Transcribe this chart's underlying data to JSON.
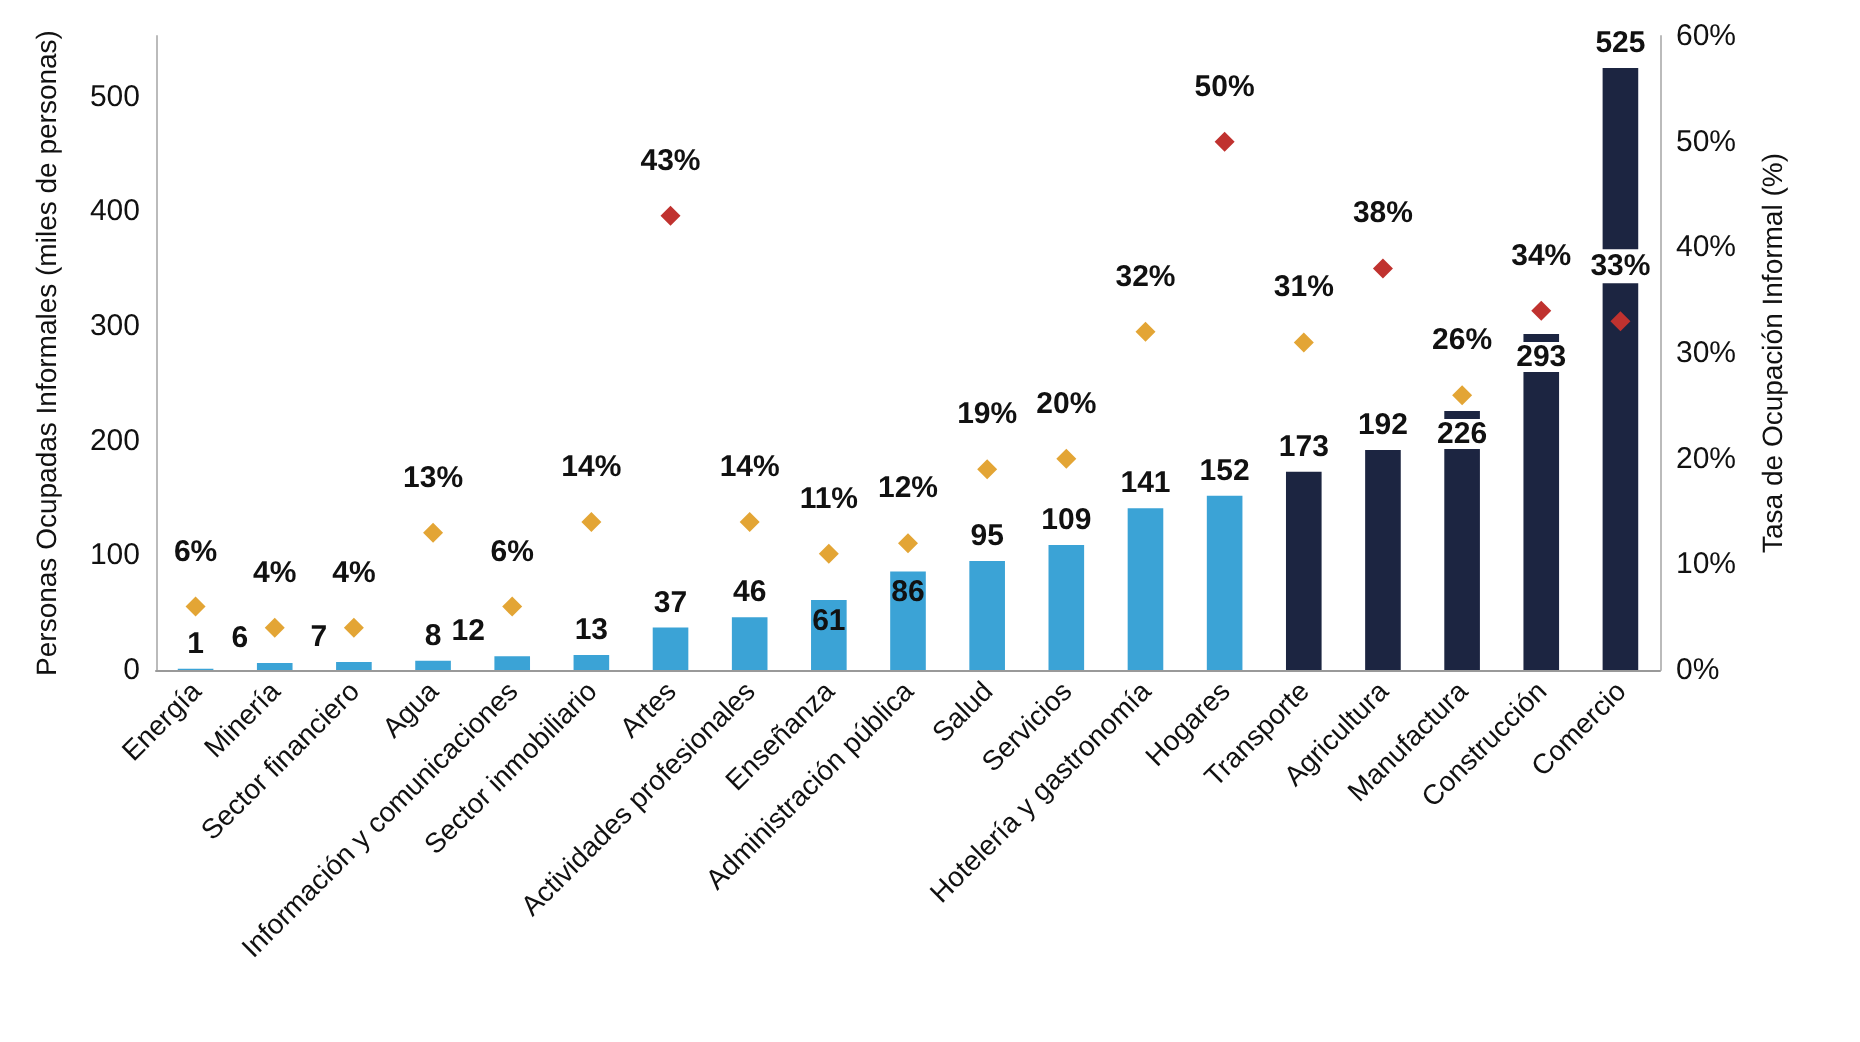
{
  "chart_data": {
    "type": "bar",
    "categories": [
      "Energía",
      "Minería",
      "Sector financiero",
      "Agua",
      "Información y comunicaciones",
      "Sector inmobiliario",
      "Artes",
      "Actividades profesionales",
      "Enseñanza",
      "Administración pública",
      "Salud",
      "Servicios",
      "Hotelería y gastronomía",
      "Hogares",
      "Transporte",
      "Agricultura",
      "Manufactura",
      "Construcción",
      "Comercio"
    ],
    "ylabel": "Personas Ocupadas Informales (miles de personas)",
    "y2label": "Tasa de Ocupación Informal (%)",
    "ylim": [
      0,
      553
    ],
    "yticks": [
      0,
      100,
      200,
      300,
      400,
      500
    ],
    "y2lim": [
      0,
      60
    ],
    "y2ticks": [
      {
        "value": 0,
        "label": "0%"
      },
      {
        "value": 10,
        "label": "10%"
      },
      {
        "value": 20,
        "label": "20%"
      },
      {
        "value": 30,
        "label": "30%"
      },
      {
        "value": 40,
        "label": "40%"
      },
      {
        "value": 50,
        "label": "50%"
      },
      {
        "value": 60,
        "label": "60%"
      }
    ],
    "grid": false,
    "data_labels": true,
    "marker": "diamond",
    "series": [
      {
        "values": [
          1,
          6,
          7,
          8,
          12,
          13,
          37,
          46,
          61,
          86,
          95,
          109,
          141,
          152,
          173,
          192,
          226,
          293,
          525
        ],
        "colors": [
          "#3ba3d6",
          "#3ba3d6",
          "#3ba3d6",
          "#3ba3d6",
          "#3ba3d6",
          "#3ba3d6",
          "#3ba3d6",
          "#3ba3d6",
          "#3ba3d6",
          "#3ba3d6",
          "#3ba3d6",
          "#3ba3d6",
          "#3ba3d6",
          "#3ba3d6",
          "#1c2541",
          "#1c2541",
          "#1c2541",
          "#1c2541",
          "#1c2541"
        ]
      },
      {
        "type": "scatter",
        "axis": "y2",
        "values": [
          6,
          4,
          4,
          13,
          6,
          14,
          43,
          14,
          11,
          12,
          19,
          20,
          32,
          50,
          31,
          38,
          26,
          34,
          33
        ],
        "value_labels": [
          "6%",
          "4%",
          "4%",
          "13%",
          "6%",
          "14%",
          "43%",
          "14%",
          "11%",
          "12%",
          "19%",
          "20%",
          "32%",
          "50%",
          "31%",
          "38%",
          "26%",
          "34%",
          "33%"
        ],
        "colors": [
          "#e3a535",
          "#e3a535",
          "#e3a535",
          "#e3a535",
          "#e3a535",
          "#e3a535",
          "#c0322f",
          "#e3a535",
          "#e3a535",
          "#e3a535",
          "#e3a535",
          "#e3a535",
          "#e3a535",
          "#c0322f",
          "#e3a535",
          "#c0322f",
          "#e3a535",
          "#c0322f",
          "#c0322f"
        ]
      }
    ]
  }
}
